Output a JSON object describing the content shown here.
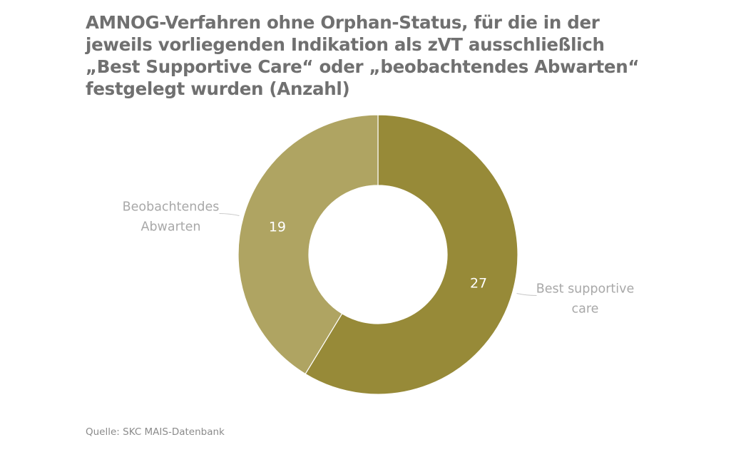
{
  "title": "AMNOG-Verfahren ohne Orphan-Status, für die in der jeweils vorliegenden Indikation als zVT ausschließlich „Best Supportive Care“ oder „beobachtendes Abwarten“ festgelegt wurden (Anzahl)",
  "source": "Quelle: SKC MAIS-Datenbank",
  "chart_data": {
    "type": "pie",
    "donut": true,
    "categories": [
      "Best supportive care",
      "Beobachtendes Abwarten"
    ],
    "values": [
      27,
      19
    ],
    "colors": [
      "#978a38",
      "#afa462"
    ],
    "legend": "none"
  }
}
